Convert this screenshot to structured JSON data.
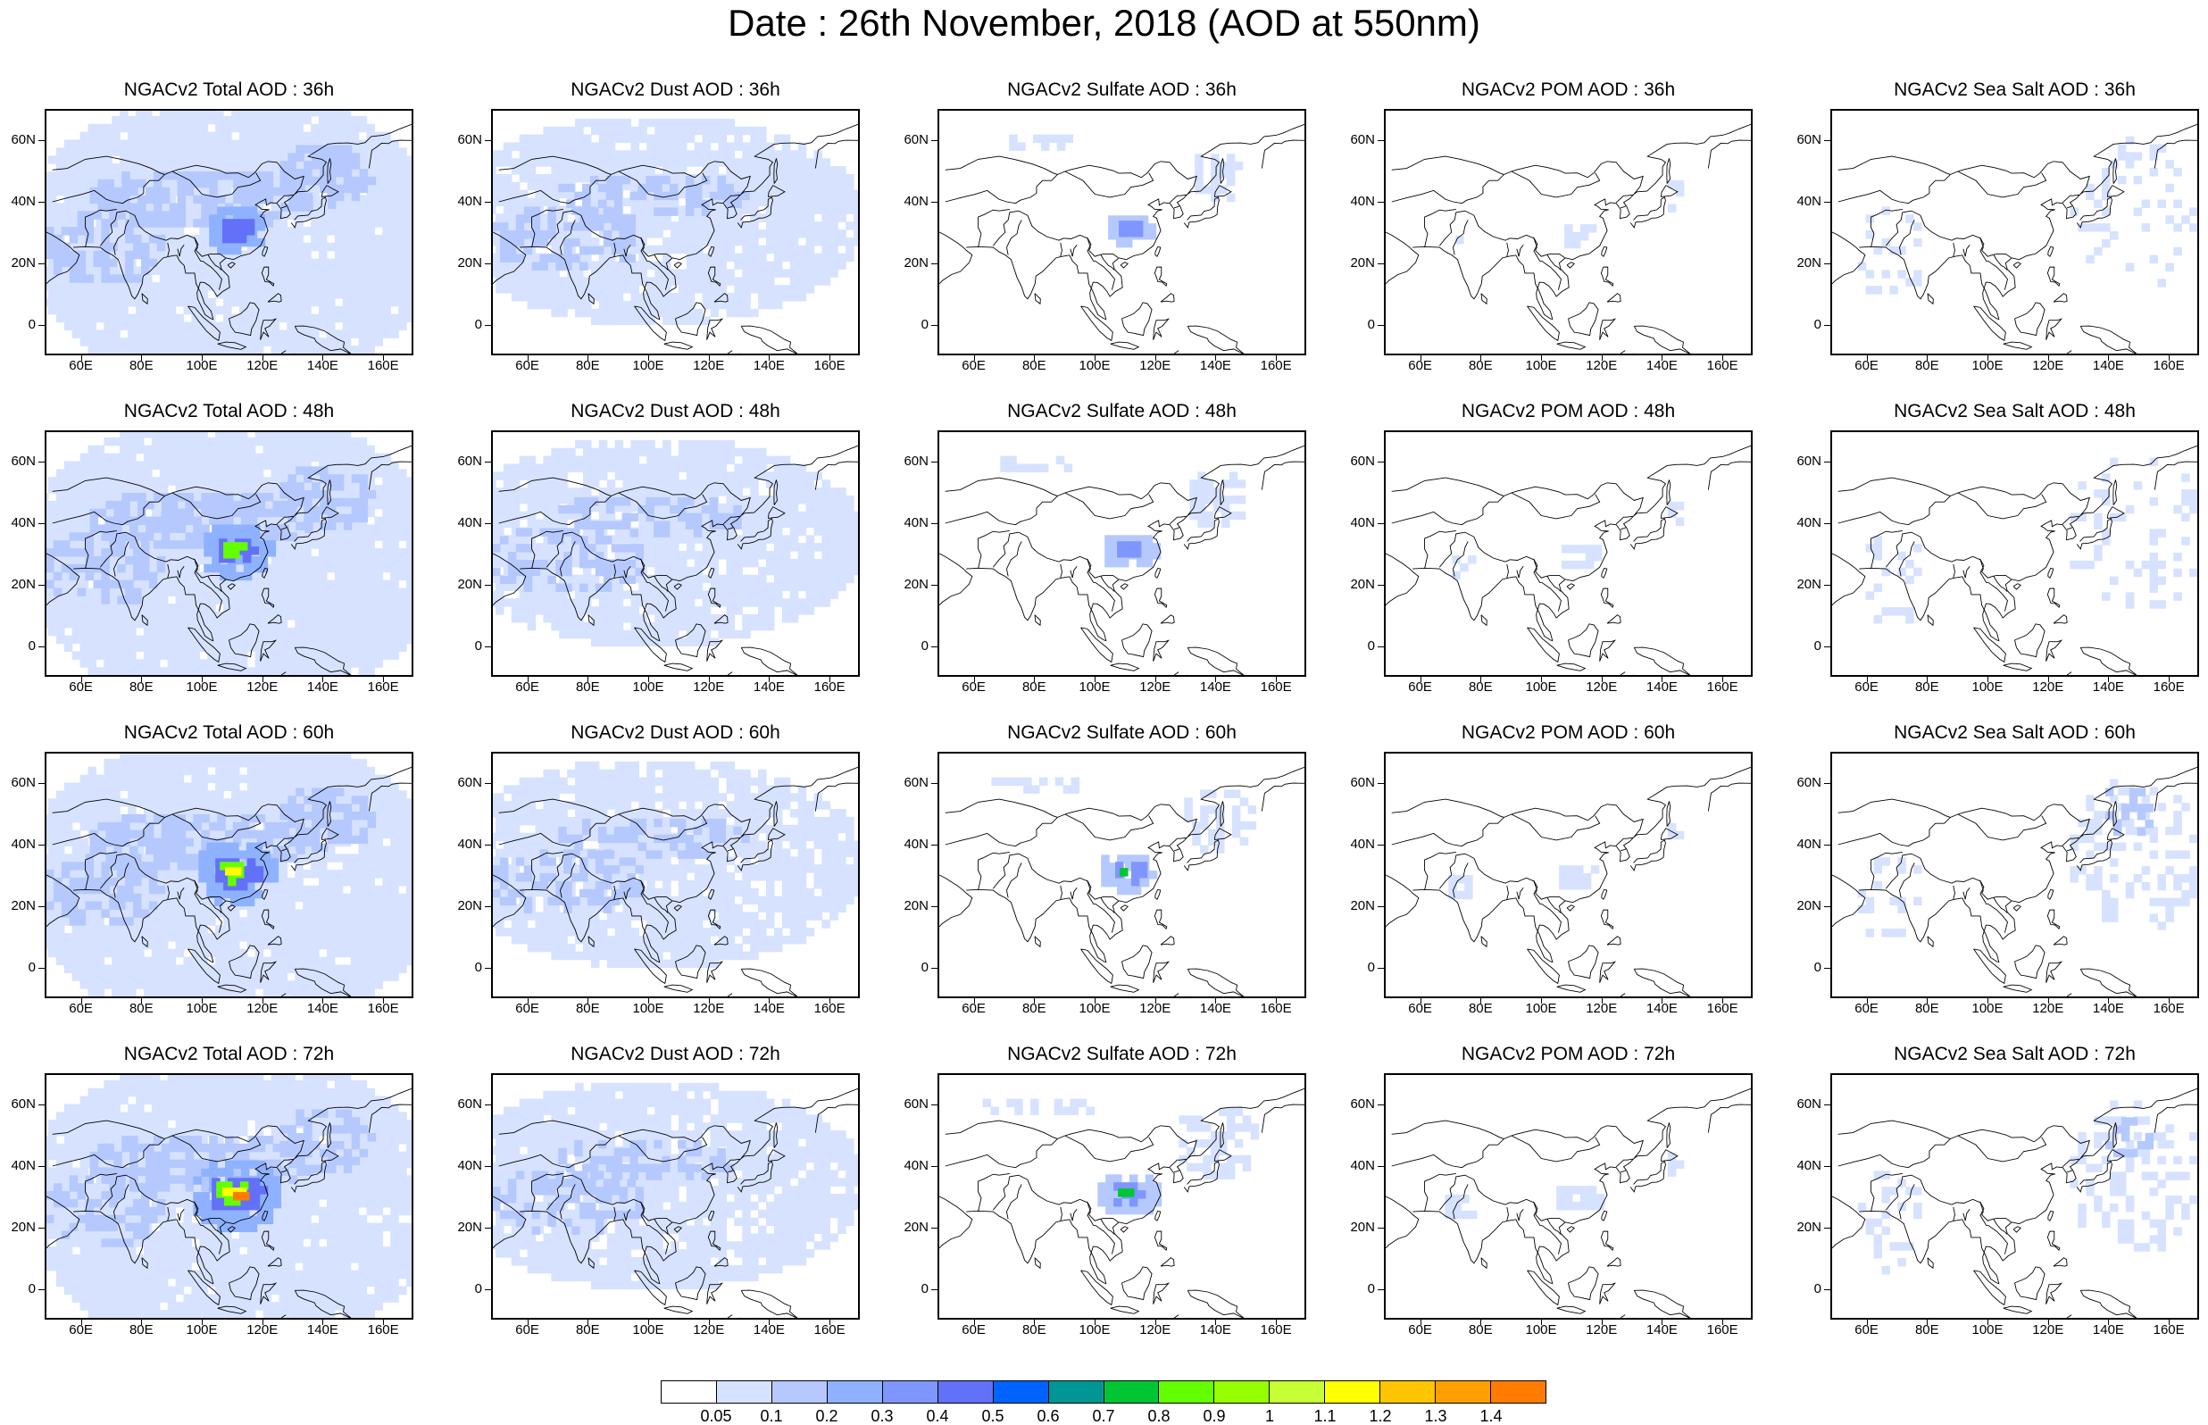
{
  "title": "Date : 26th November, 2018 (AOD at 550nm)",
  "axes": {
    "lat_labels": [
      "60N",
      "40N",
      "20N",
      "0"
    ],
    "lat_values": [
      60,
      40,
      20,
      0
    ],
    "lon_labels": [
      "60E",
      "80E",
      "100E",
      "120E",
      "140E",
      "160E"
    ],
    "lon_values": [
      60,
      80,
      100,
      120,
      140,
      160
    ],
    "lon_range": [
      48,
      170
    ],
    "lat_range": [
      -10,
      70
    ]
  },
  "species": [
    "Total",
    "Dust",
    "Sulfate",
    "POM",
    "Sea Salt"
  ],
  "hours": [
    "36h",
    "48h",
    "60h",
    "72h"
  ],
  "panels": [
    [
      "NGACv2 Total AOD : 36h",
      "NGACv2 Dust AOD : 36h",
      "NGACv2 Sulfate AOD : 36h",
      "NGACv2 POM AOD : 36h",
      "NGACv2 Sea Salt AOD : 36h"
    ],
    [
      "NGACv2 Total AOD : 48h",
      "NGACv2 Dust AOD : 48h",
      "NGACv2 Sulfate AOD : 48h",
      "NGACv2 POM AOD : 48h",
      "NGACv2 Sea Salt AOD : 48h"
    ],
    [
      "NGACv2 Total AOD : 60h",
      "NGACv2 Dust AOD : 60h",
      "NGACv2 Sulfate AOD : 60h",
      "NGACv2 POM AOD : 60h",
      "NGACv2 Sea Salt AOD : 60h"
    ],
    [
      "NGACv2 Total AOD : 72h",
      "NGACv2 Dust AOD : 72h",
      "NGACv2 Sulfate AOD : 72h",
      "NGACv2 POM AOD : 72h",
      "NGACv2 Sea Salt  AOD : 72h"
    ]
  ],
  "colorbar": {
    "labels": [
      "0.05",
      "0.1",
      "0.2",
      "0.3",
      "0.4",
      "0.5",
      "0.6",
      "0.7",
      "0.8",
      "0.9",
      "1",
      "1.1",
      "1.2",
      "1.3",
      "1.4"
    ],
    "colors": [
      "#ffffff",
      "#d6e2ff",
      "#b5c9ff",
      "#8eb2ff",
      "#7f96ff",
      "#6370f8",
      "#0063ff",
      "#009696",
      "#00c633",
      "#63ff00",
      "#96ff00",
      "#c6ff33",
      "#ffff00",
      "#ffc600",
      "#ffa000",
      "#ff7c00",
      "#ff1900"
    ]
  }
}
